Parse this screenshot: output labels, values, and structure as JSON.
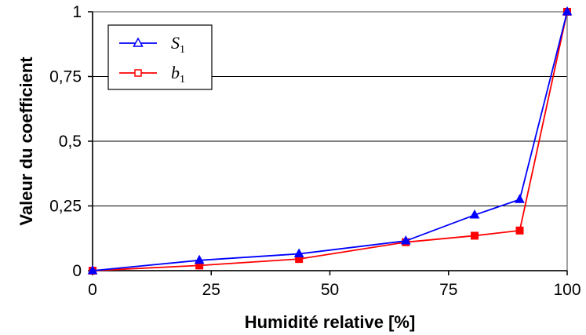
{
  "chart_data": {
    "type": "line",
    "title": "",
    "xlabel": "Humidité relative [%]",
    "ylabel": "Valeur du coefficient",
    "xlim": [
      0,
      100
    ],
    "ylim": [
      0,
      1
    ],
    "x_ticks": [
      0,
      25,
      50,
      75,
      100
    ],
    "x_tick_labels": [
      "0",
      "25",
      "50",
      "75",
      "100"
    ],
    "y_ticks": [
      0,
      0.25,
      0.5,
      0.75,
      1
    ],
    "y_tick_labels": [
      "0",
      "0,25",
      "0,5",
      "0,75",
      "1"
    ],
    "grid": "horizontal",
    "legend_position": "top-left",
    "series": [
      {
        "name": "S",
        "name_sub": "1",
        "color": "#0000ff",
        "marker": "triangle",
        "x": [
          0,
          22.5,
          43.5,
          66,
          80.5,
          90,
          100
        ],
        "y": [
          0,
          0.04,
          0.065,
          0.115,
          0.215,
          0.275,
          1
        ]
      },
      {
        "name": "b",
        "name_sub": "1",
        "color": "#ff0000",
        "marker": "square",
        "x": [
          0,
          22.5,
          43.5,
          66,
          80.5,
          90,
          100
        ],
        "y": [
          0,
          0.02,
          0.045,
          0.11,
          0.135,
          0.155,
          1
        ]
      }
    ]
  }
}
